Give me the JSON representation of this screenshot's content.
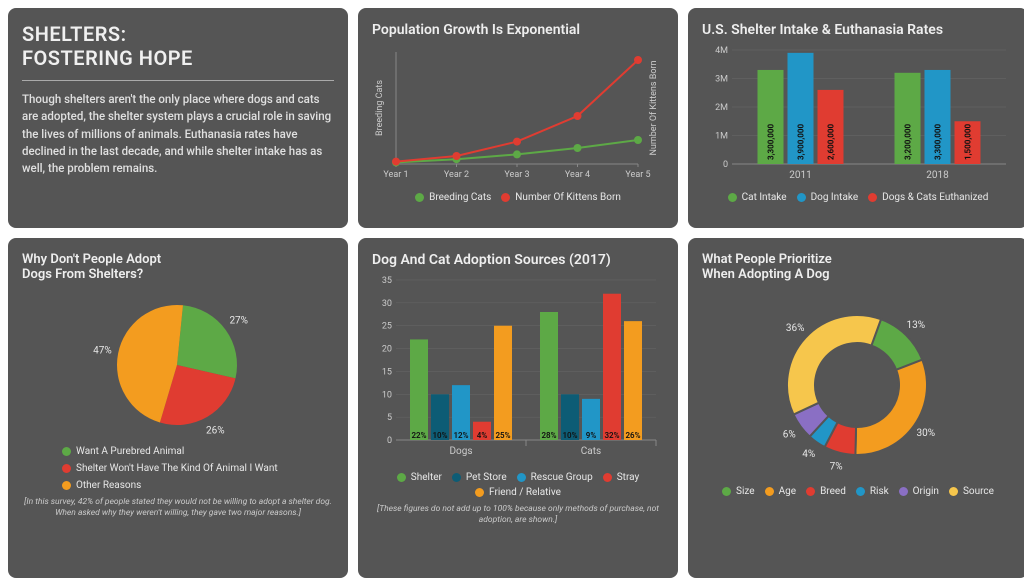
{
  "colors": {
    "panel_bg": "#555555",
    "green": "#5da946",
    "red": "#e03c31",
    "orange": "#f39c1f",
    "blue": "#2196c7",
    "darkblue": "#0d5c75",
    "yellow": "#f6c64c",
    "purple": "#8a6fc4",
    "grid": "#888888",
    "text": "#e8e8e8"
  },
  "title_panel": {
    "title_line1": "SHELTERS:",
    "title_line2": "FOSTERING HOPE",
    "body": "Though shelters aren't the only place where dogs and cats are adopted, the shelter system plays a crucial role in saving the lives of millions of animals.  Euthanasia rates have declined in the last decade, and while shelter intake has as well, the problem remains."
  },
  "pop_growth": {
    "title": "Population Growth Is Exponential",
    "x_labels": [
      "Year 1",
      "Year 2",
      "Year 3",
      "Year 4",
      "Year 5"
    ],
    "y_left_label": "Breeding Cats",
    "y_right_label": "Number Of Kittens Born",
    "series": [
      {
        "name": "Breeding Cats",
        "color": "#5da946",
        "values": [
          2,
          6,
          12,
          20,
          30
        ]
      },
      {
        "name": "Number Of Kittens Born",
        "color": "#e03c31",
        "values": [
          3,
          10,
          28,
          60,
          130
        ]
      }
    ],
    "ylim": [
      0,
      140
    ]
  },
  "shelter_rates": {
    "title": "U.S. Shelter Intake & Euthanasia Rates",
    "y_ticks": [
      0,
      1,
      2,
      3,
      4
    ],
    "y_tick_labels": [
      "0",
      "1M",
      "2M",
      "3M",
      "4M"
    ],
    "ylim": [
      0,
      4000000
    ],
    "groups": [
      "2011",
      "2018"
    ],
    "series": [
      {
        "name": "Cat Intake",
        "color": "#5da946",
        "values": [
          3300000,
          3200000
        ],
        "labels": [
          "3,300,000",
          "3,200,000"
        ]
      },
      {
        "name": "Dog Intake",
        "color": "#2196c7",
        "values": [
          3900000,
          3300000
        ],
        "labels": [
          "3,900,000",
          "3,300,000"
        ]
      },
      {
        "name": "Dogs & Cats Euthanized",
        "color": "#e03c31",
        "values": [
          2600000,
          1500000
        ],
        "labels": [
          "2,600,000",
          "1,500,000"
        ]
      }
    ]
  },
  "why_not_adopt": {
    "title_line1": "Why Don't People Adopt",
    "title_line2": "Dogs From Shelters?",
    "slices": [
      {
        "label": "Want A Purebred Animal",
        "value": 27,
        "color": "#5da946"
      },
      {
        "label": "Shelter Won't Have The Kind Of Animal I Want",
        "value": 26,
        "color": "#e03c31"
      },
      {
        "label": "Other Reasons",
        "value": 47,
        "color": "#f39c1f"
      }
    ],
    "footnote": "[In this survey, 42% of people stated they would not be willing to adopt a shelter dog. When asked why they weren't willing, they gave two major reasons.]"
  },
  "adoption_sources": {
    "title": "Dog And Cat Adoption Sources (2017)",
    "y_ticks": [
      0,
      5,
      10,
      15,
      20,
      25,
      30,
      35
    ],
    "ylim": [
      0,
      35
    ],
    "groups": [
      "Dogs",
      "Cats"
    ],
    "series": [
      {
        "name": "Shelter",
        "color": "#5da946",
        "values": [
          22,
          28
        ],
        "labels": [
          "22%",
          "28%"
        ]
      },
      {
        "name": "Pet Store",
        "color": "#0d5c75",
        "values": [
          10,
          10
        ],
        "labels": [
          "10%",
          "10%"
        ]
      },
      {
        "name": "Rescue Group",
        "color": "#2196c7",
        "values": [
          12,
          9
        ],
        "labels": [
          "12%",
          "9%"
        ]
      },
      {
        "name": "Stray",
        "color": "#e03c31",
        "values": [
          4,
          32
        ],
        "labels": [
          "4%",
          "32%"
        ]
      },
      {
        "name": "Friend / Relative",
        "color": "#f39c1f",
        "values": [
          25,
          26
        ],
        "labels": [
          "25%",
          "26%"
        ]
      }
    ],
    "footnote": "[These figures do not add up to 100% because only methods of purchase, not adoption, are shown.]"
  },
  "priorities": {
    "title_line1": "What People Prioritize",
    "title_line2": "When Adopting A Dog",
    "slices": [
      {
        "label": "Size",
        "value": 13,
        "color": "#5da946"
      },
      {
        "label": "Age",
        "value": 30,
        "color": "#f39c1f"
      },
      {
        "label": "Breed",
        "value": 7,
        "color": "#e03c31"
      },
      {
        "label": "Risk",
        "value": 4,
        "color": "#2196c7"
      },
      {
        "label": "Origin",
        "value": 6,
        "color": "#8a6fc4"
      },
      {
        "label": "Source",
        "value": 36,
        "color": "#f6c64c"
      }
    ]
  }
}
